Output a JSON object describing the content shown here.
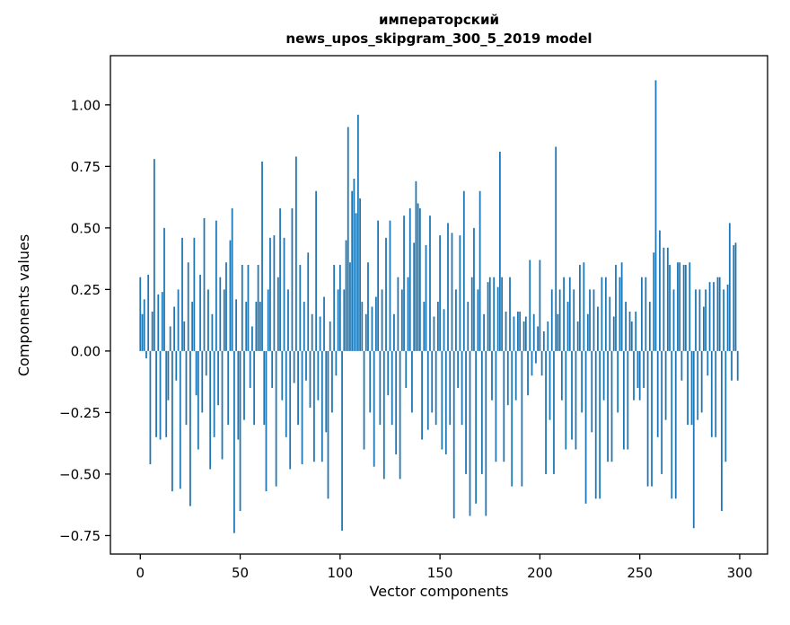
{
  "figure": {
    "background": "#ffffff"
  },
  "chart_data": {
    "type": "bar",
    "title_line1": "императорский",
    "title_line2": "news_upos_skipgram_300_5_2019 model",
    "title": "императорский\nnews_upos_skipgram_300_5_2019 model",
    "xlabel": "Vector components",
    "ylabel": "Components values",
    "xlim": [
      -14.95,
      313.95
    ],
    "ylim": [
      -0.825,
      1.2
    ],
    "xticks": [
      0,
      50,
      100,
      150,
      200,
      250,
      300
    ],
    "yticks": [
      -0.75,
      -0.5,
      -0.25,
      0,
      0.25,
      0.5,
      0.75,
      1.0
    ],
    "grid": false,
    "legend": "none",
    "bar_color": "#1f77b4",
    "x_start": 0,
    "values": [
      0.3,
      0.15,
      0.21,
      -0.03,
      0.31,
      -0.46,
      0.16,
      0.78,
      -0.35,
      0.23,
      -0.36,
      0.24,
      0.5,
      -0.35,
      -0.2,
      0.1,
      -0.57,
      0.18,
      -0.12,
      0.25,
      -0.56,
      0.46,
      0.12,
      -0.3,
      0.36,
      -0.63,
      0.2,
      0.46,
      -0.18,
      -0.4,
      0.31,
      -0.25,
      0.54,
      -0.1,
      0.25,
      -0.48,
      0.15,
      -0.35,
      0.53,
      -0.22,
      0.3,
      -0.44,
      0.25,
      0.36,
      -0.3,
      0.45,
      0.58,
      -0.74,
      0.21,
      -0.36,
      -0.65,
      0.35,
      -0.28,
      0.2,
      0.35,
      -0.15,
      0.1,
      -0.3,
      0.2,
      0.35,
      0.2,
      0.77,
      -0.3,
      -0.57,
      0.25,
      0.46,
      -0.15,
      0.47,
      -0.55,
      0.3,
      0.58,
      -0.2,
      0.46,
      -0.35,
      0.25,
      -0.48,
      0.58,
      -0.13,
      0.79,
      -0.3,
      0.35,
      -0.46,
      0.2,
      -0.12,
      0.4,
      -0.23,
      0.15,
      -0.45,
      0.65,
      -0.2,
      0.14,
      -0.45,
      0.22,
      -0.33,
      -0.6,
      0.12,
      -0.25,
      0.35,
      -0.1,
      0.25,
      0.35,
      -0.73,
      0.25,
      0.45,
      0.91,
      0.36,
      0.65,
      0.7,
      0.56,
      0.96,
      0.62,
      0.2,
      -0.4,
      0.15,
      0.36,
      -0.25,
      0.18,
      -0.47,
      0.22,
      0.53,
      -0.3,
      0.25,
      -0.52,
      0.46,
      -0.18,
      0.53,
      -0.3,
      0.15,
      -0.42,
      0.3,
      -0.52,
      0.25,
      0.55,
      -0.15,
      0.3,
      0.58,
      -0.25,
      0.44,
      0.69,
      0.6,
      0.58,
      -0.36,
      0.2,
      0.43,
      -0.32,
      0.55,
      -0.25,
      0.14,
      -0.3,
      0.2,
      0.47,
      -0.4,
      0.17,
      -0.42,
      0.52,
      -0.3,
      0.48,
      -0.68,
      0.25,
      -0.15,
      0.47,
      -0.3,
      0.65,
      -0.5,
      0.2,
      -0.67,
      0.3,
      0.5,
      -0.62,
      0.25,
      0.65,
      -0.5,
      0.15,
      -0.67,
      0.28,
      0.3,
      -0.2,
      0.3,
      -0.45,
      0.26,
      0.81,
      0.3,
      -0.45,
      0.16,
      -0.22,
      0.3,
      -0.55,
      0.14,
      -0.2,
      0.16,
      0.16,
      -0.55,
      0.12,
      0.14,
      -0.18,
      0.37,
      -0.1,
      0.15,
      -0.05,
      0.1,
      0.37,
      -0.1,
      0.08,
      -0.5,
      0.12,
      -0.28,
      0.25,
      -0.5,
      0.83,
      0.15,
      0.25,
      -0.2,
      0.3,
      -0.4,
      0.2,
      0.3,
      -0.36,
      0.25,
      -0.4,
      0.12,
      0.35,
      -0.25,
      0.36,
      -0.62,
      0.15,
      0.25,
      -0.33,
      0.25,
      -0.6,
      0.18,
      -0.6,
      0.3,
      -0.2,
      0.3,
      -0.45,
      0.22,
      -0.45,
      0.14,
      0.35,
      -0.25,
      0.3,
      0.36,
      -0.4,
      0.2,
      -0.4,
      0.16,
      0.12,
      -0.2,
      0.16,
      -0.15,
      -0.2,
      0.3,
      -0.15,
      0.3,
      -0.55,
      0.2,
      -0.55,
      0.4,
      1.1,
      -0.35,
      0.49,
      -0.5,
      0.42,
      -0.28,
      0.42,
      0.35,
      -0.6,
      0.25,
      -0.6,
      0.36,
      0.36,
      -0.12,
      0.35,
      0.35,
      -0.3,
      0.36,
      -0.3,
      -0.72,
      0.25,
      -0.28,
      0.25,
      -0.25,
      0.18,
      0.25,
      -0.1,
      0.28,
      -0.35,
      0.28,
      -0.35,
      0.3,
      0.3,
      -0.65,
      0.25,
      -0.45,
      0.27,
      0.52,
      -0.12,
      0.43,
      0.44,
      -0.12
    ]
  }
}
